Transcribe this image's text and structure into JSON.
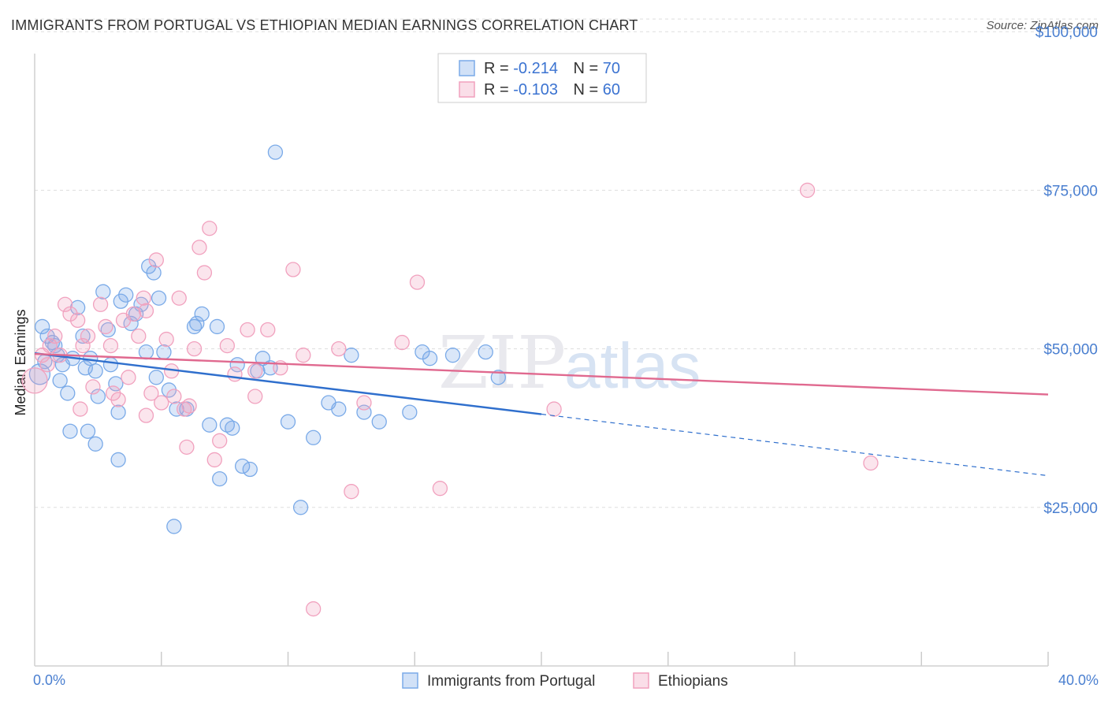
{
  "title": "IMMIGRANTS FROM PORTUGAL VS ETHIOPIAN MEDIAN EARNINGS CORRELATION CHART",
  "source": "Source: ZipAtlas.com",
  "watermark": {
    "zip": "ZIP",
    "atlas": "atlas"
  },
  "chart_data": {
    "type": "scatter",
    "ylabel": "Median Earnings",
    "xlim": [
      0,
      40
    ],
    "ylim": [
      0,
      105000
    ],
    "x_tick_labels": {
      "min": "0.0%",
      "max": "40.0%"
    },
    "y_ticks": [
      {
        "value": 25000,
        "label": "$25,000"
      },
      {
        "value": 50000,
        "label": "$50,000"
      },
      {
        "value": 75000,
        "label": "$75,000"
      },
      {
        "value": 100000,
        "label": "$100,000"
      }
    ],
    "grid": true,
    "legend": {
      "placement": "top-center",
      "rows": [
        {
          "r_label": "R = ",
          "r_value": "-0.214",
          "n_label": "N = ",
          "n_value": "70"
        },
        {
          "r_label": "R = ",
          "r_value": "-0.103",
          "n_label": "N = ",
          "n_value": "60"
        }
      ]
    },
    "series": [
      {
        "name": "Immigrants from Portugal",
        "color": "#7aaae8",
        "fill": "rgba(122,170,232,0.28)",
        "line_color": "#2f6fcd",
        "trend": {
          "x0": 0,
          "y0": 49300,
          "x1": 20,
          "y1": 39700,
          "dash_x1": 40,
          "dash_y1": 30000
        },
        "points": [
          [
            0.3,
            53500
          ],
          [
            0.5,
            52000
          ],
          [
            0.7,
            51000
          ],
          [
            0.4,
            48000
          ],
          [
            0.9,
            49000
          ],
          [
            1.1,
            47500
          ],
          [
            1.0,
            45000
          ],
          [
            1.3,
            43000
          ],
          [
            0.8,
            50500
          ],
          [
            1.5,
            48500
          ],
          [
            1.7,
            56500
          ],
          [
            1.9,
            52000
          ],
          [
            2.0,
            47000
          ],
          [
            2.2,
            48500
          ],
          [
            2.4,
            46500
          ],
          [
            2.5,
            42500
          ],
          [
            2.7,
            59000
          ],
          [
            2.9,
            53000
          ],
          [
            3.0,
            47500
          ],
          [
            3.2,
            44500
          ],
          [
            3.4,
            57500
          ],
          [
            3.6,
            58500
          ],
          [
            3.8,
            54000
          ],
          [
            4.0,
            55500
          ],
          [
            4.2,
            57000
          ],
          [
            4.4,
            49500
          ],
          [
            4.5,
            63000
          ],
          [
            4.7,
            62000
          ],
          [
            4.8,
            45500
          ],
          [
            4.9,
            58000
          ],
          [
            5.1,
            49500
          ],
          [
            5.3,
            43500
          ],
          [
            5.6,
            40500
          ],
          [
            6.0,
            40500
          ],
          [
            6.3,
            53500
          ],
          [
            6.6,
            55500
          ],
          [
            6.4,
            54000
          ],
          [
            6.9,
            38000
          ],
          [
            7.2,
            53500
          ],
          [
            7.6,
            38000
          ],
          [
            7.8,
            37500
          ],
          [
            8.0,
            47500
          ],
          [
            8.2,
            31500
          ],
          [
            8.5,
            31000
          ],
          [
            8.8,
            46500
          ],
          [
            9.0,
            48500
          ],
          [
            9.3,
            47000
          ],
          [
            9.5,
            81000
          ],
          [
            10.0,
            38500
          ],
          [
            10.5,
            25000
          ],
          [
            11.0,
            36000
          ],
          [
            11.6,
            41500
          ],
          [
            12.0,
            40500
          ],
          [
            12.5,
            49000
          ],
          [
            13.0,
            40000
          ],
          [
            13.6,
            38500
          ],
          [
            14.8,
            40000
          ],
          [
            15.3,
            49500
          ],
          [
            15.6,
            48500
          ],
          [
            16.5,
            49000
          ],
          [
            17.8,
            49500
          ],
          [
            18.3,
            45500
          ],
          [
            2.1,
            37000
          ],
          [
            1.4,
            37000
          ],
          [
            2.4,
            35000
          ],
          [
            3.3,
            40000
          ],
          [
            3.3,
            32500
          ],
          [
            5.5,
            22000
          ],
          [
            7.3,
            29500
          ],
          [
            0.2,
            46000
          ]
        ]
      },
      {
        "name": "Ethiopians",
        "color": "#f1a1be",
        "fill": "rgba(241,161,190,0.28)",
        "line_color": "#e0698f",
        "trend": {
          "x0": 0,
          "y0": 49200,
          "x1": 40,
          "y1": 42800
        },
        "points": [
          [
            0.0,
            45000
          ],
          [
            0.3,
            49000
          ],
          [
            0.6,
            50500
          ],
          [
            0.8,
            52000
          ],
          [
            1.0,
            49000
          ],
          [
            1.2,
            57000
          ],
          [
            1.4,
            55500
          ],
          [
            1.7,
            54500
          ],
          [
            1.9,
            50500
          ],
          [
            2.1,
            52000
          ],
          [
            2.3,
            44000
          ],
          [
            2.6,
            57000
          ],
          [
            2.8,
            53500
          ],
          [
            3.0,
            50500
          ],
          [
            3.1,
            43000
          ],
          [
            3.3,
            42000
          ],
          [
            3.5,
            54500
          ],
          [
            3.7,
            45500
          ],
          [
            3.9,
            55500
          ],
          [
            4.1,
            52000
          ],
          [
            4.3,
            58000
          ],
          [
            4.4,
            56000
          ],
          [
            4.6,
            43000
          ],
          [
            4.8,
            64000
          ],
          [
            5.0,
            41500
          ],
          [
            5.2,
            51500
          ],
          [
            5.4,
            46500
          ],
          [
            5.5,
            42500
          ],
          [
            5.7,
            58000
          ],
          [
            5.9,
            40500
          ],
          [
            6.0,
            34500
          ],
          [
            6.3,
            50000
          ],
          [
            6.5,
            66000
          ],
          [
            6.7,
            62000
          ],
          [
            6.9,
            69000
          ],
          [
            7.1,
            32500
          ],
          [
            7.3,
            35500
          ],
          [
            7.6,
            50500
          ],
          [
            7.9,
            46000
          ],
          [
            8.4,
            53000
          ],
          [
            8.7,
            42500
          ],
          [
            9.2,
            53000
          ],
          [
            9.7,
            47000
          ],
          [
            10.2,
            62500
          ],
          [
            10.6,
            49000
          ],
          [
            11.0,
            9000
          ],
          [
            12.0,
            50000
          ],
          [
            12.5,
            27500
          ],
          [
            13.0,
            41500
          ],
          [
            14.5,
            51000
          ],
          [
            15.1,
            60500
          ],
          [
            16.0,
            28000
          ],
          [
            20.5,
            40500
          ],
          [
            30.5,
            75000
          ],
          [
            33.0,
            32000
          ],
          [
            1.8,
            40500
          ],
          [
            4.4,
            39500
          ],
          [
            6.1,
            41000
          ],
          [
            8.7,
            46500
          ],
          [
            0.5,
            47500
          ]
        ]
      }
    ]
  }
}
